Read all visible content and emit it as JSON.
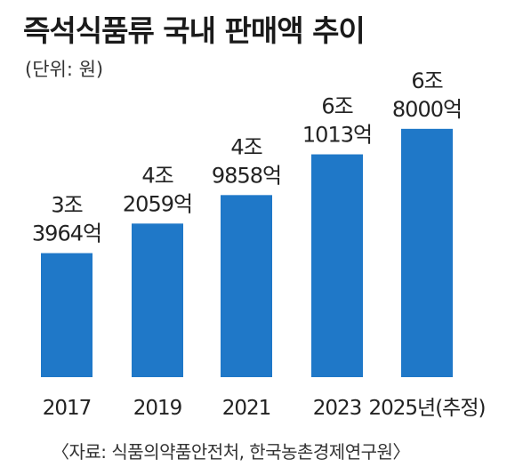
{
  "chart_data": {
    "type": "bar",
    "title": "즉석식품류 국내 판매액 추이",
    "unit_label": "(단위: 원)",
    "categories": [
      "2017",
      "2019",
      "2021",
      "2023",
      "2025년(추정)"
    ],
    "values": [
      3.3964,
      4.2059,
      4.9858,
      6.1013,
      6.8
    ],
    "value_labels": [
      [
        "3조",
        "3964억"
      ],
      [
        "4조",
        "2059억"
      ],
      [
        "4조",
        "9858억"
      ],
      [
        "6조",
        "1013억"
      ],
      [
        "6조",
        "8000억"
      ]
    ],
    "value_unit": "조 원",
    "ylim": [
      0,
      7.6
    ],
    "grid": false,
    "bar_color": "#1f78c8",
    "source": "〈자료: 식품의약품안전처, 한국농촌경제연구원〉"
  }
}
